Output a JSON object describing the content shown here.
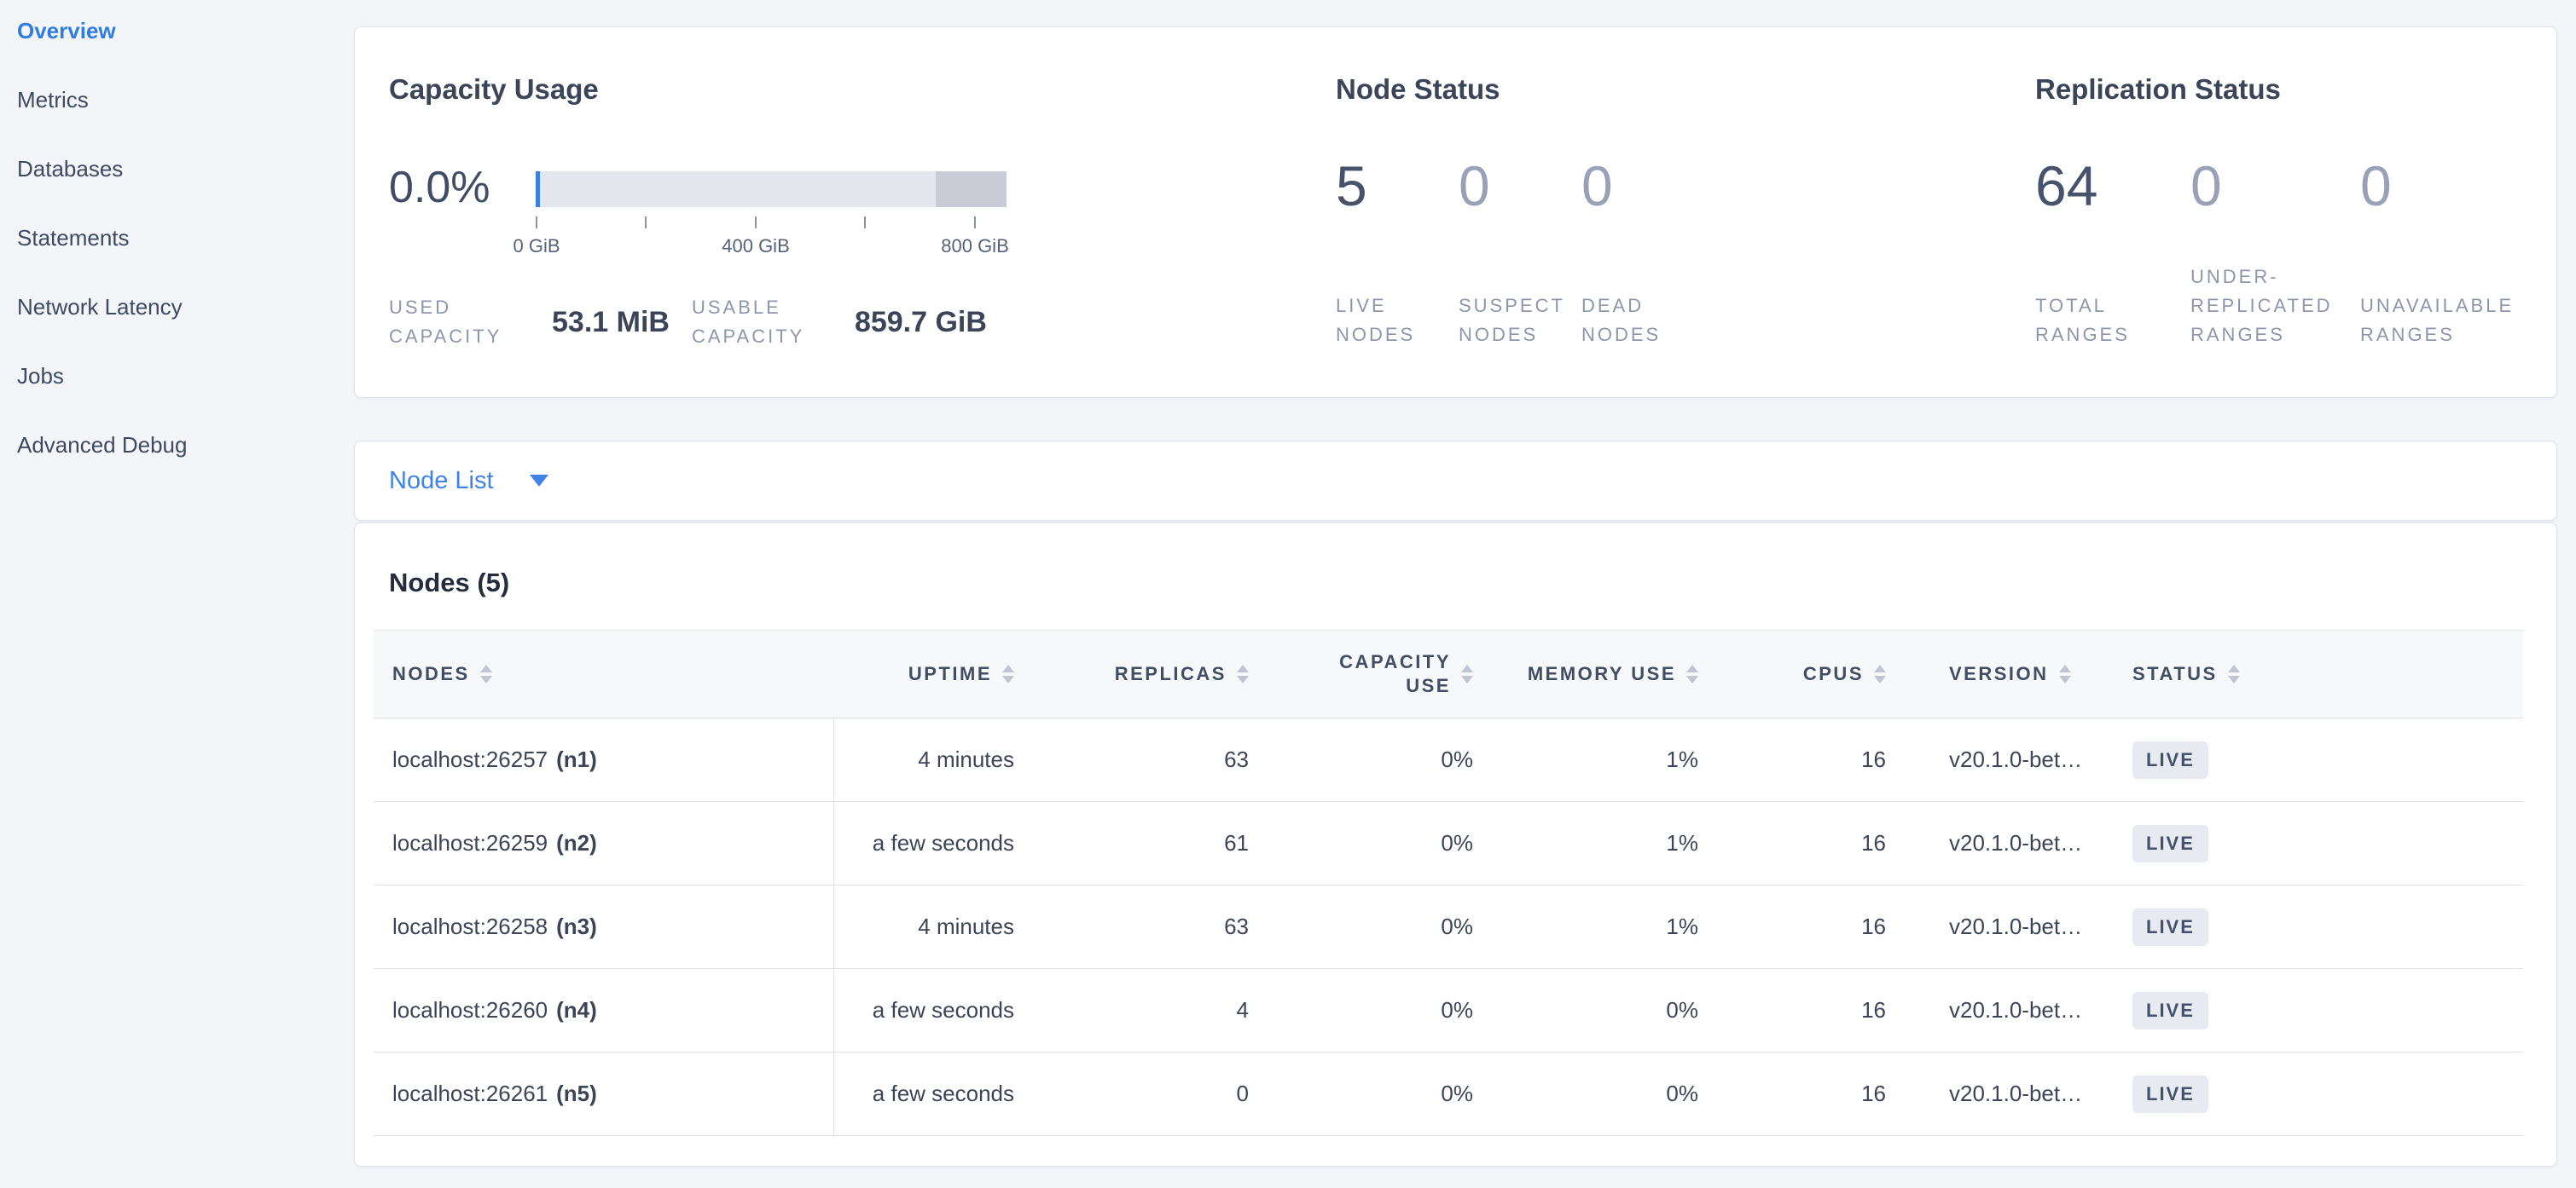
{
  "sidebar": {
    "items": [
      {
        "label": "Overview",
        "active": true
      },
      {
        "label": "Metrics",
        "active": false
      },
      {
        "label": "Databases",
        "active": false
      },
      {
        "label": "Statements",
        "active": false
      },
      {
        "label": "Network Latency",
        "active": false
      },
      {
        "label": "Jobs",
        "active": false
      },
      {
        "label": "Advanced Debug",
        "active": false
      }
    ]
  },
  "summary": {
    "capacity_usage": {
      "title": "Capacity Usage",
      "percent": "0.0%",
      "gauge": {
        "tick_labels": [
          "0 GiB",
          "400 GiB",
          "800 GiB"
        ],
        "bar_color": "#e3e6ec",
        "reserved_segment_color": "#c9ccd6",
        "used_marker_color": "#3b7ee8",
        "reserved_segment_start_pct": 85,
        "max_label": "800 GiB"
      },
      "stats": [
        {
          "label": "USED CAPACITY",
          "value": "53.1 MiB"
        },
        {
          "label": "USABLE CAPACITY",
          "value": "859.7 GiB"
        }
      ]
    },
    "node_status": {
      "title": "Node Status",
      "stats": [
        {
          "value": "5",
          "label": "LIVE NODES"
        },
        {
          "value": "0",
          "label": "SUSPECT NODES"
        },
        {
          "value": "0",
          "label": "DEAD NODES"
        }
      ]
    },
    "replication_status": {
      "title": "Replication Status",
      "stats": [
        {
          "value": "64",
          "label": "TOTAL RANGES"
        },
        {
          "value": "0",
          "label": "UNDER-REPLICATED RANGES"
        },
        {
          "value": "0",
          "label": "UNAVAILABLE RANGES"
        }
      ]
    }
  },
  "view_selector": {
    "label": "Node List"
  },
  "nodes_section": {
    "title": "Nodes (5)",
    "table": {
      "columns": [
        "NODES",
        "UPTIME",
        "REPLICAS",
        "CAPACITY USE",
        "MEMORY USE",
        "CPUS",
        "VERSION",
        "STATUS"
      ],
      "rows": [
        {
          "address": "localhost:26257",
          "node_id": "(n1)",
          "uptime": "4 minutes",
          "replicas": "63",
          "capacity_use": "0%",
          "memory_use": "1%",
          "cpus": "16",
          "version": "v20.1.0-bet…",
          "status": "LIVE"
        },
        {
          "address": "localhost:26259",
          "node_id": "(n2)",
          "uptime": "a few seconds",
          "replicas": "61",
          "capacity_use": "0%",
          "memory_use": "1%",
          "cpus": "16",
          "version": "v20.1.0-bet…",
          "status": "LIVE"
        },
        {
          "address": "localhost:26258",
          "node_id": "(n3)",
          "uptime": "4 minutes",
          "replicas": "63",
          "capacity_use": "0%",
          "memory_use": "1%",
          "cpus": "16",
          "version": "v20.1.0-bet…",
          "status": "LIVE"
        },
        {
          "address": "localhost:26260",
          "node_id": "(n4)",
          "uptime": "a few seconds",
          "replicas": "4",
          "capacity_use": "0%",
          "memory_use": "0%",
          "cpus": "16",
          "version": "v20.1.0-bet…",
          "status": "LIVE"
        },
        {
          "address": "localhost:26261",
          "node_id": "(n5)",
          "uptime": "a few seconds",
          "replicas": "0",
          "capacity_use": "0%",
          "memory_use": "0%",
          "cpus": "16",
          "version": "v20.1.0-bet…",
          "status": "LIVE"
        }
      ]
    }
  },
  "colors": {
    "accent_blue": "#3b7ee8",
    "badge_bg": "#e7eaf1",
    "badge_text": "#44516b",
    "page_bg": "#f3f5f9"
  }
}
